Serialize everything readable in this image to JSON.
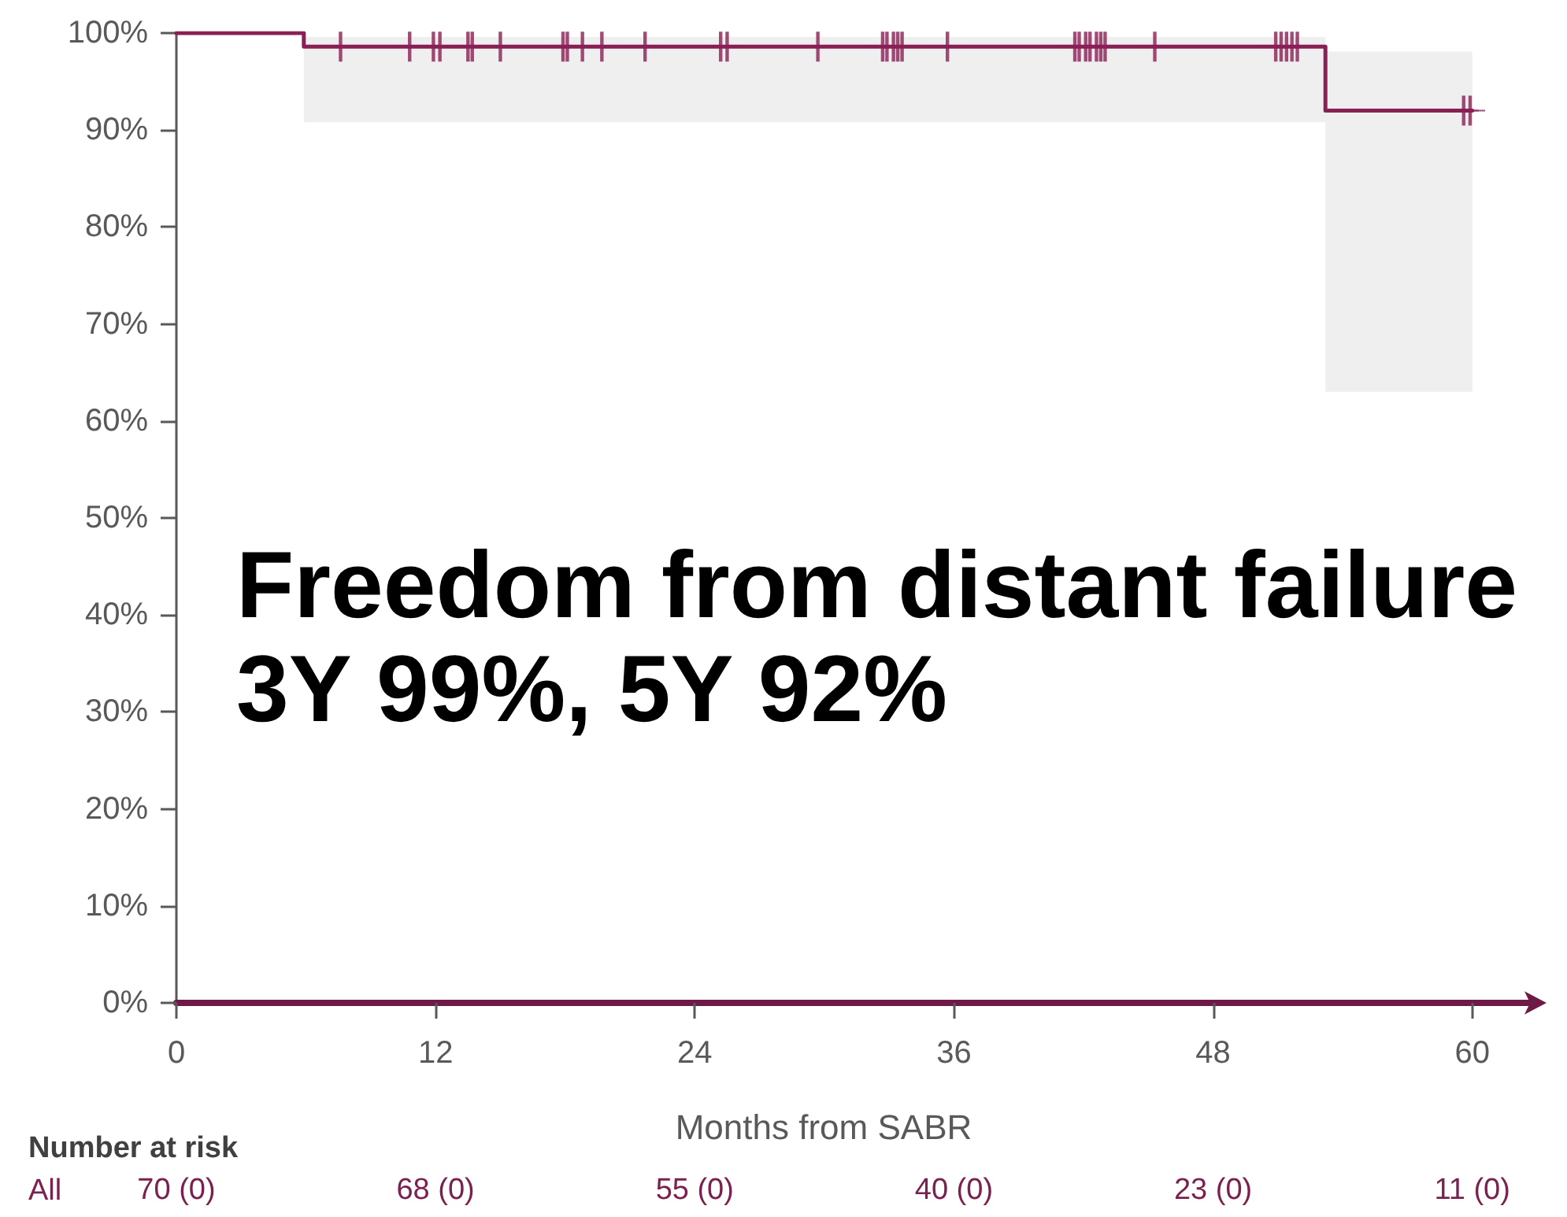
{
  "chart_data": {
    "type": "step",
    "xlabel": "Months from SABR",
    "annotations": [
      "Freedom from distant failure",
      "3Y 99%, 5Y 92%",
      "Number at risk",
      "All",
      "70 (0)",
      "68 (0)",
      "55 (0)",
      "40 (0)",
      "23 (0)",
      "11 (0)"
    ],
    "xlim": [
      0,
      63
    ],
    "xticks": [
      0,
      12,
      24,
      36,
      48,
      60
    ],
    "ylim": [
      0,
      100
    ],
    "yticks": [
      {
        "value": 0,
        "label": "0%"
      },
      {
        "value": 10,
        "label": "10%"
      },
      {
        "value": 20,
        "label": "20%"
      },
      {
        "value": 30,
        "label": "30%"
      },
      {
        "value": 40,
        "label": "40%"
      },
      {
        "value": 50,
        "label": "50%"
      },
      {
        "value": 60,
        "label": "60%"
      },
      {
        "value": 70,
        "label": "70%"
      },
      {
        "value": 80,
        "label": "80%"
      },
      {
        "value": 90,
        "label": "90%"
      },
      {
        "value": 100,
        "label": "100%"
      }
    ],
    "grid": false,
    "series": [
      {
        "color": "#8a1f55",
        "x": [
          0,
          5.9,
          53.2,
          60
        ],
        "values": [
          100,
          98.6,
          92,
          92
        ],
        "lower": [
          100,
          90.8,
          63,
          63
        ],
        "upper": [
          100,
          99.6,
          98.1,
          98.1
        ]
      },
      {
        "type": "scatter",
        "color": "#8a1f55",
        "x": [
          7.6,
          10.8,
          11.9,
          12.2,
          13.5,
          13.7,
          15.0,
          17.9,
          18.1,
          18.8,
          19.7,
          21.7,
          25.2,
          25.5,
          29.7,
          32.7,
          32.9,
          33.2,
          33.4,
          33.6,
          35.7,
          41.6,
          41.8,
          42.1,
          42.3,
          42.6,
          42.8,
          43.0,
          45.3,
          50.9,
          51.15,
          51.4,
          51.65,
          51.9,
          59.6,
          59.9
        ],
        "values": [
          98.6,
          98.6,
          98.6,
          98.6,
          98.6,
          98.6,
          98.6,
          98.6,
          98.6,
          98.6,
          98.6,
          98.6,
          98.6,
          98.6,
          98.6,
          98.6,
          98.6,
          98.6,
          98.6,
          98.6,
          98.6,
          98.6,
          98.6,
          98.6,
          98.6,
          98.6,
          98.6,
          98.6,
          98.6,
          98.6,
          98.6,
          98.6,
          98.6,
          98.6,
          92,
          92
        ]
      }
    ]
  }
}
